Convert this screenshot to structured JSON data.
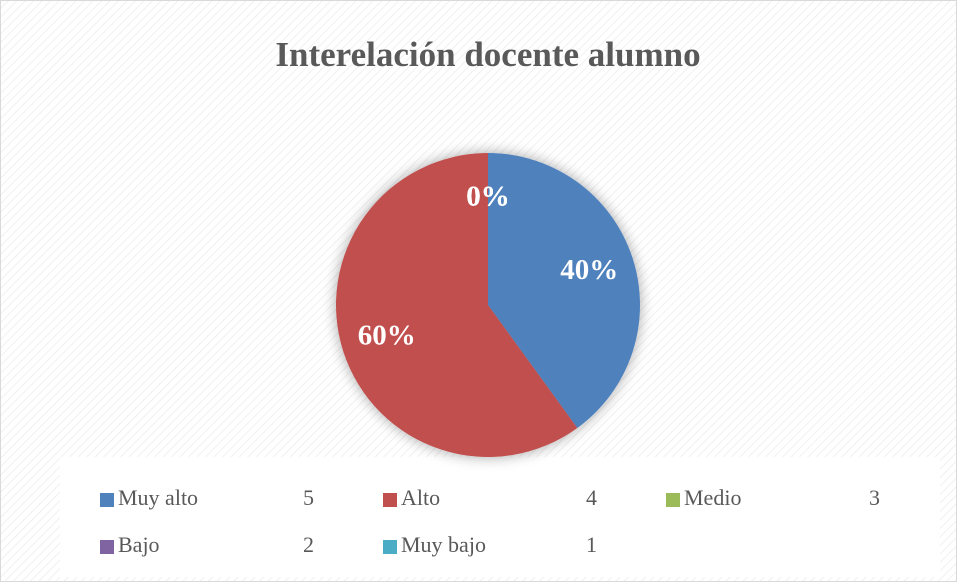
{
  "chart_data": {
    "type": "pie",
    "title": "Interelación docente alumno",
    "categories": [
      "Muy alto",
      "Alto",
      "Medio",
      "Bajo",
      "Muy bajo"
    ],
    "category_codes": [
      5,
      4,
      3,
      2,
      1
    ],
    "values": [
      40,
      60,
      0,
      0,
      0
    ],
    "value_labels": [
      "40%",
      "60%",
      "0%",
      "0%",
      "0%"
    ],
    "colors": [
      "#4f81bd",
      "#c0504d",
      "#9bbb59",
      "#8064a2",
      "#4bacc6"
    ],
    "legend": "bottom"
  }
}
